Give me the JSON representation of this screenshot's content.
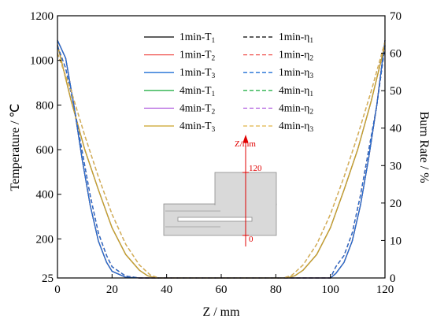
{
  "chart_data": {
    "type": "line",
    "xlabel": "Z / mm",
    "ylabel_left": "Temperature / ℃",
    "ylabel_right": "Burn Rate / %",
    "xlim": [
      0,
      120
    ],
    "ylim_left": [
      0,
      1200
    ],
    "ylim_right": [
      0,
      70
    ],
    "x_ticks": [
      "0",
      "20",
      "40",
      "60",
      "80",
      "100",
      "120"
    ],
    "y_left_ticks": [
      {
        "label": "25",
        "value": 25
      },
      {
        "label": "200",
        "value": 200
      },
      {
        "label": "400",
        "value": 400
      },
      {
        "label": "600",
        "value": 600
      },
      {
        "label": "800",
        "value": 800
      },
      {
        "label": "1000",
        "value": 1000
      },
      {
        "label": "1200",
        "value": 1200
      }
    ],
    "y_right_ticks": [
      "0",
      "10",
      "20",
      "30",
      "40",
      "50",
      "60",
      "70"
    ],
    "legend_placement": "top-center",
    "series": [
      {
        "name": "1min-T",
        "sub": "1",
        "style": "solid",
        "color": "#000000",
        "axis": "left",
        "x": [
          0,
          3,
          6,
          9,
          12,
          15,
          18,
          20,
          25,
          30,
          35,
          40,
          45,
          50,
          55,
          60,
          65,
          70,
          75,
          80,
          85,
          90,
          95,
          100,
          102,
          105,
          108,
          111,
          114,
          117,
          120
        ],
        "y": [
          1090,
          1010,
          800,
          560,
          350,
          190,
          95,
          55,
          28,
          25,
          25,
          25,
          25,
          25,
          25,
          25,
          25,
          25,
          25,
          25,
          25,
          25,
          25,
          25,
          45,
          95,
          190,
          350,
          560,
          800,
          1090
        ]
      },
      {
        "name": "1min-T",
        "sub": "2",
        "style": "solid",
        "color": "#ef5350",
        "axis": "left",
        "x": [
          0,
          3,
          6,
          9,
          12,
          15,
          18,
          20,
          25,
          30,
          35,
          40,
          45,
          50,
          55,
          60,
          65,
          70,
          75,
          80,
          85,
          90,
          95,
          100,
          102,
          105,
          108,
          111,
          114,
          117,
          120
        ],
        "y": [
          1090,
          1010,
          800,
          560,
          350,
          190,
          95,
          55,
          28,
          25,
          25,
          25,
          25,
          25,
          25,
          25,
          25,
          25,
          25,
          25,
          25,
          25,
          25,
          25,
          45,
          95,
          190,
          350,
          560,
          800,
          1090
        ]
      },
      {
        "name": "1min-T",
        "sub": "3",
        "style": "solid",
        "color": "#1f6fd6",
        "axis": "left",
        "x": [
          0,
          3,
          6,
          9,
          12,
          15,
          18,
          20,
          25,
          30,
          35,
          40,
          45,
          50,
          55,
          60,
          65,
          70,
          75,
          80,
          85,
          90,
          95,
          100,
          102,
          105,
          108,
          111,
          114,
          117,
          120
        ],
        "y": [
          1090,
          1010,
          800,
          560,
          350,
          190,
          95,
          55,
          28,
          25,
          25,
          25,
          25,
          25,
          25,
          25,
          25,
          25,
          25,
          25,
          25,
          25,
          25,
          25,
          45,
          95,
          190,
          350,
          560,
          800,
          1090
        ]
      },
      {
        "name": "4min-T",
        "sub": "1",
        "style": "solid",
        "color": "#2bb24c",
        "axis": "left",
        "x": [
          0,
          5,
          10,
          15,
          20,
          25,
          30,
          33,
          36,
          40,
          45,
          50,
          55,
          60,
          65,
          70,
          75,
          80,
          84,
          87,
          90,
          95,
          100,
          105,
          110,
          115,
          120
        ],
        "y": [
          1070,
          820,
          600,
          420,
          250,
          130,
          60,
          35,
          25,
          25,
          25,
          25,
          25,
          25,
          25,
          25,
          25,
          25,
          25,
          35,
          60,
          130,
          250,
          420,
          600,
          820,
          1070
        ]
      },
      {
        "name": "4min-T",
        "sub": "2",
        "style": "solid",
        "color": "#b566e0",
        "axis": "left",
        "x": [
          0,
          5,
          10,
          15,
          20,
          25,
          30,
          33,
          36,
          40,
          45,
          50,
          55,
          60,
          65,
          70,
          75,
          80,
          84,
          87,
          90,
          95,
          100,
          105,
          110,
          115,
          120
        ],
        "y": [
          1070,
          820,
          600,
          420,
          250,
          130,
          60,
          35,
          25,
          25,
          25,
          25,
          25,
          25,
          25,
          25,
          25,
          25,
          25,
          35,
          60,
          130,
          250,
          420,
          600,
          820,
          1070
        ]
      },
      {
        "name": "4min-T",
        "sub": "3",
        "style": "solid",
        "color": "#c9a227",
        "axis": "left",
        "x": [
          0,
          5,
          10,
          15,
          20,
          25,
          30,
          33,
          36,
          40,
          45,
          50,
          55,
          60,
          65,
          70,
          75,
          80,
          84,
          87,
          90,
          95,
          100,
          105,
          110,
          115,
          120
        ],
        "y": [
          1070,
          820,
          600,
          420,
          250,
          130,
          60,
          35,
          25,
          25,
          25,
          25,
          25,
          25,
          25,
          25,
          25,
          25,
          25,
          35,
          60,
          130,
          250,
          420,
          600,
          820,
          1070
        ]
      },
      {
        "name": "1min-η",
        "sub": "1",
        "style": "dashed",
        "color": "#000000",
        "axis": "right",
        "x": [
          0,
          3,
          6,
          9,
          12,
          15,
          18,
          20,
          25,
          30,
          35,
          40,
          45,
          50,
          55,
          60,
          65,
          70,
          75,
          80,
          85,
          90,
          95,
          100,
          102,
          105,
          108,
          111,
          114,
          117,
          120
        ],
        "y": [
          62,
          56,
          46,
          34,
          22,
          12,
          6,
          3,
          0.5,
          0,
          0,
          0,
          0,
          0,
          0,
          0,
          0,
          0,
          0,
          0,
          0,
          0,
          0,
          0,
          3,
          6,
          12,
          22,
          34,
          46,
          62
        ]
      },
      {
        "name": "1min-η",
        "sub": "2",
        "style": "dashed",
        "color": "#ef5350",
        "axis": "right",
        "x": [
          0,
          3,
          6,
          9,
          12,
          15,
          18,
          20,
          25,
          30,
          35,
          40,
          45,
          50,
          55,
          60,
          65,
          70,
          75,
          80,
          85,
          90,
          95,
          100,
          102,
          105,
          108,
          111,
          114,
          117,
          120
        ],
        "y": [
          62,
          56,
          46,
          34,
          22,
          12,
          6,
          3,
          0.5,
          0,
          0,
          0,
          0,
          0,
          0,
          0,
          0,
          0,
          0,
          0,
          0,
          0,
          0,
          0,
          3,
          6,
          12,
          22,
          34,
          46,
          62
        ]
      },
      {
        "name": "1min-η",
        "sub": "3",
        "style": "dashed",
        "color": "#1f6fd6",
        "axis": "right",
        "x": [
          0,
          3,
          6,
          9,
          12,
          15,
          18,
          20,
          25,
          30,
          35,
          40,
          45,
          50,
          55,
          60,
          65,
          70,
          75,
          80,
          85,
          90,
          95,
          100,
          102,
          105,
          108,
          111,
          114,
          117,
          120
        ],
        "y": [
          62,
          56,
          46,
          34,
          22,
          12,
          6,
          3,
          0.5,
          0,
          0,
          0,
          0,
          0,
          0,
          0,
          0,
          0,
          0,
          0,
          0,
          0,
          0,
          0,
          3,
          6,
          12,
          22,
          34,
          46,
          62
        ]
      },
      {
        "name": "4min-η",
        "sub": "1",
        "style": "dashed",
        "color": "#2bb24c",
        "axis": "right",
        "x": [
          0,
          5,
          10,
          15,
          20,
          25,
          30,
          34,
          37,
          40,
          45,
          50,
          55,
          60,
          65,
          70,
          75,
          80,
          83,
          86,
          90,
          95,
          100,
          105,
          110,
          115,
          120
        ],
        "y": [
          60,
          50,
          38,
          27,
          17,
          9,
          3.5,
          0.8,
          0,
          0,
          0,
          0,
          0,
          0,
          0,
          0,
          0,
          0,
          0,
          0.8,
          3.5,
          9,
          17,
          27,
          38,
          50,
          63
        ]
      },
      {
        "name": "4min-η",
        "sub": "2",
        "style": "dashed",
        "color": "#b566e0",
        "axis": "right",
        "x": [
          0,
          5,
          10,
          15,
          20,
          25,
          30,
          34,
          37,
          40,
          45,
          50,
          55,
          60,
          65,
          70,
          75,
          80,
          83,
          86,
          90,
          95,
          100,
          105,
          110,
          115,
          120
        ],
        "y": [
          60,
          50,
          38,
          27,
          17,
          9,
          3.5,
          0.8,
          0,
          0,
          0,
          0,
          0,
          0,
          0,
          0,
          0,
          0,
          0,
          0.8,
          3.5,
          9,
          17,
          27,
          38,
          50,
          63
        ]
      },
      {
        "name": "4min-η",
        "sub": "3",
        "style": "dashed",
        "color": "#e0b548",
        "axis": "right",
        "x": [
          0,
          5,
          10,
          15,
          20,
          25,
          30,
          34,
          37,
          40,
          45,
          50,
          55,
          60,
          65,
          70,
          75,
          80,
          83,
          86,
          90,
          95,
          100,
          105,
          110,
          115,
          120
        ],
        "y": [
          60,
          50,
          38,
          27,
          17,
          9,
          3.5,
          0.8,
          0,
          0,
          0,
          0,
          0,
          0,
          0,
          0,
          0,
          0,
          0,
          0.8,
          3.5,
          9,
          17,
          27,
          38,
          50,
          63
        ]
      }
    ]
  },
  "inset": {
    "axis_label": "Z/mm",
    "top_value": "120",
    "bottom_value": "0",
    "fill_color": "#d9d9d9",
    "accent_color": "#e00000"
  }
}
